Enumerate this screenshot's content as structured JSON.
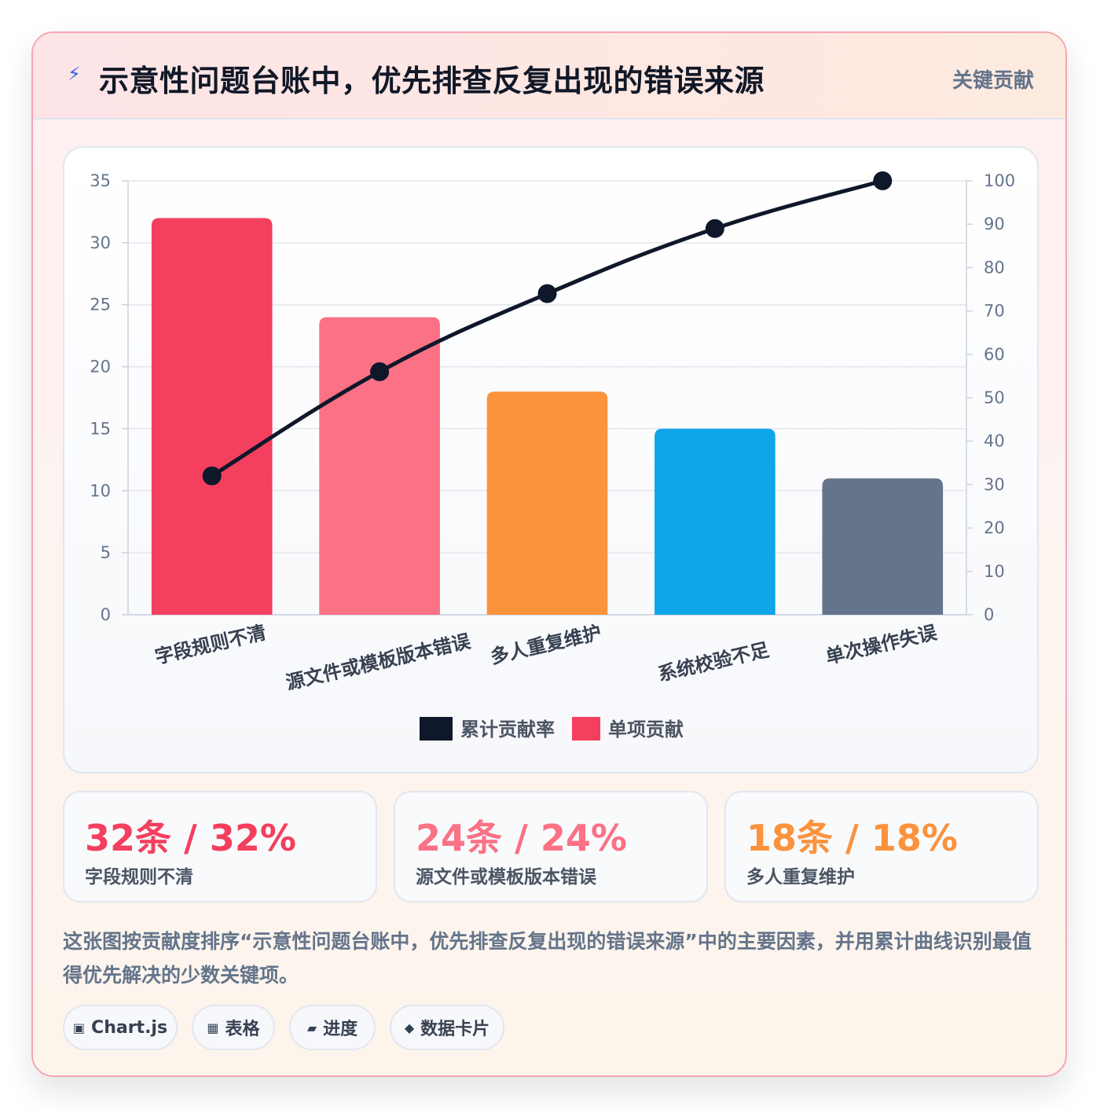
{
  "header": {
    "icon": "lightning-icon",
    "title": "示意性问题台账中，优先排查反复出现的错误来源",
    "badge": "关键贡献"
  },
  "chart_data": {
    "type": "bar",
    "categories": [
      "字段规则不清",
      "源文件或模板版本错误",
      "多人重复维护",
      "系统校验不足",
      "单次操作失误"
    ],
    "series": [
      {
        "name": "单项贡献",
        "type": "bar",
        "axis": "left",
        "values": [
          32,
          24,
          18,
          15,
          11
        ],
        "colors": [
          "#f43f5e",
          "#fb7185",
          "#fb923c",
          "#0ea5e9",
          "#64748b"
        ]
      },
      {
        "name": "累计贡献率",
        "type": "line",
        "axis": "right",
        "values": [
          32,
          56,
          74,
          89,
          100
        ],
        "color": "#0f172a"
      }
    ],
    "y_left": {
      "min": 0,
      "max": 35,
      "ticks": [
        0,
        5,
        10,
        15,
        20,
        25,
        30,
        35
      ]
    },
    "y_right": {
      "min": 0,
      "max": 100,
      "ticks": [
        0,
        10,
        20,
        30,
        40,
        50,
        60,
        70,
        80,
        90,
        100
      ]
    },
    "legend": {
      "position": "bottom",
      "items": [
        {
          "label": "累计贡献率",
          "color": "#0f172a"
        },
        {
          "label": "单项贡献",
          "color": "#f43f5e"
        }
      ]
    },
    "grid": true
  },
  "stats": [
    {
      "value": "32条 / 32%",
      "label": "字段规则不清",
      "color": "#f43f5e"
    },
    {
      "value": "24条 / 24%",
      "label": "源文件或模板版本错误",
      "color": "#fb7185"
    },
    {
      "value": "18条 / 18%",
      "label": "多人重复维护",
      "color": "#fb923c"
    }
  ],
  "description": "这张图按贡献度排序“示意性问题台账中，优先排查反复出现的错误来源”中的主要因素，并用累计曲线识别最值得优先解决的少数关键项。",
  "tags": [
    {
      "icon": "▣",
      "label": "Chart.js"
    },
    {
      "icon": "▦",
      "label": "表格"
    },
    {
      "icon": "▰",
      "label": "进度"
    },
    {
      "icon": "◆",
      "label": "数据卡片"
    }
  ]
}
